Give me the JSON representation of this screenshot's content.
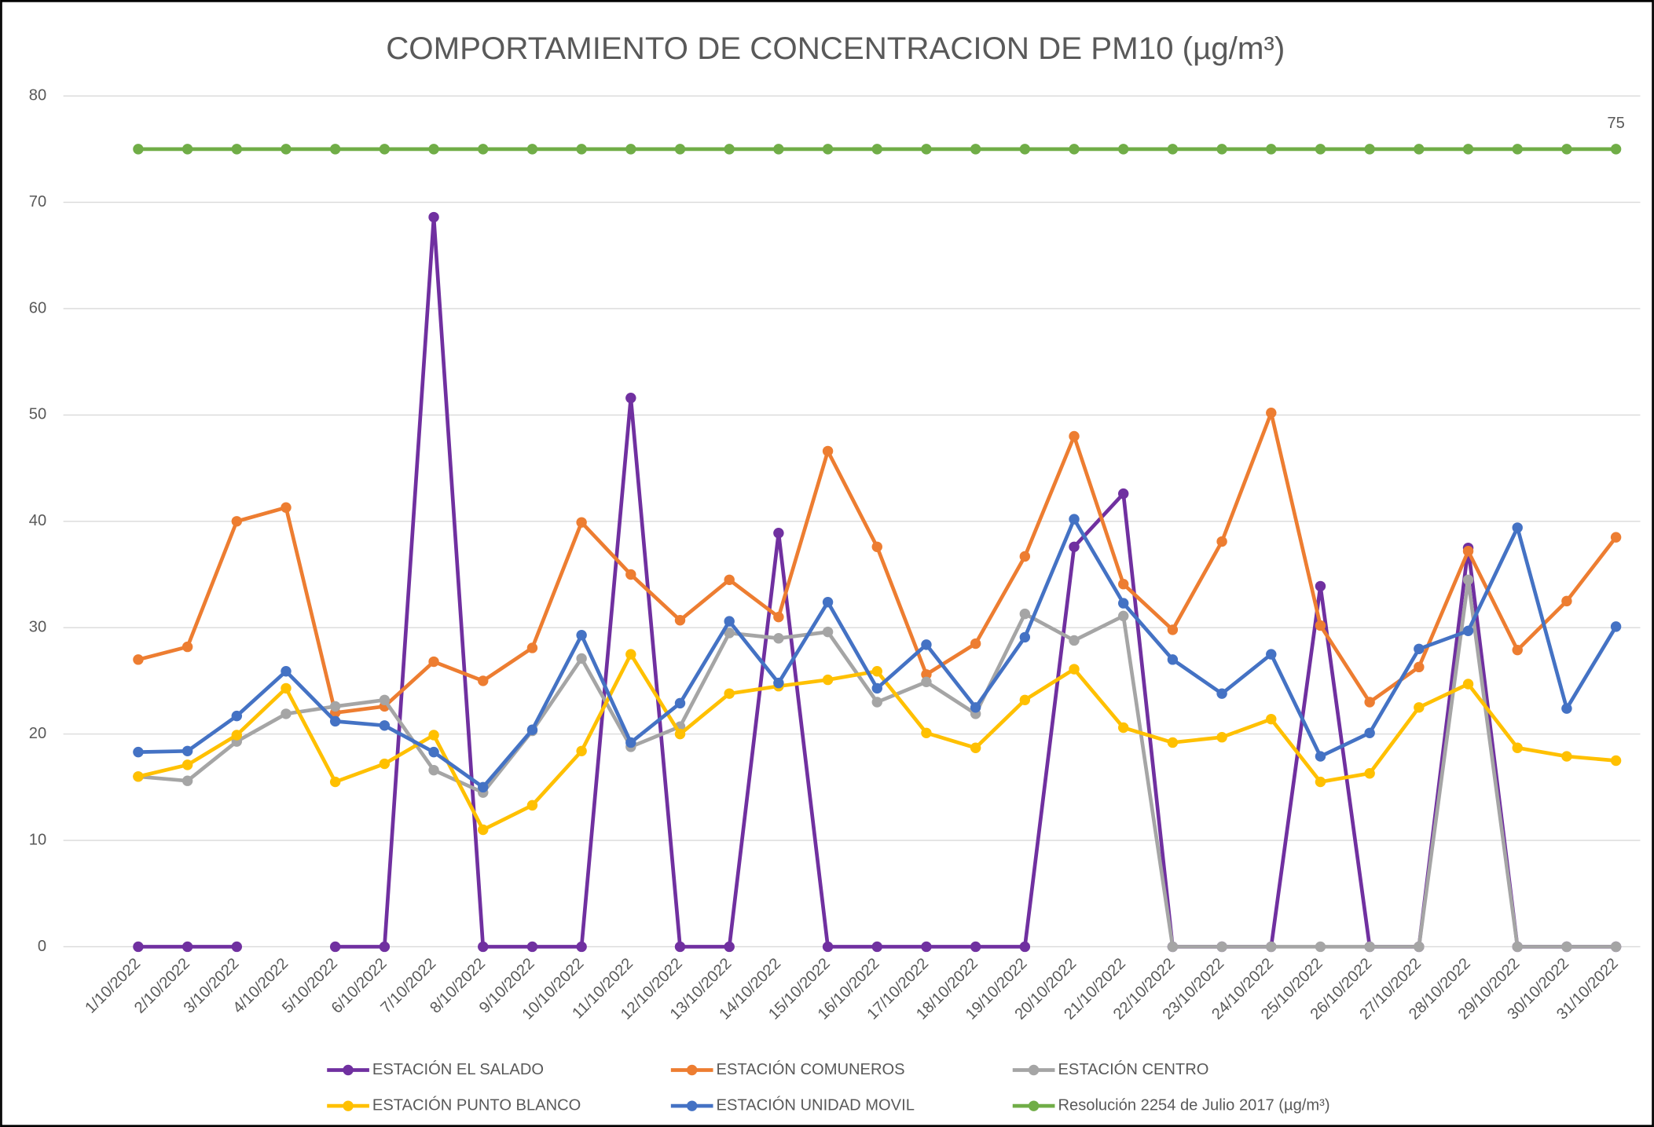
{
  "chart_data": {
    "type": "line",
    "title": "COMPORTAMIENTO DE CONCENTRACION DE PM10 (µg/m³)",
    "categories": [
      "1/10/2022",
      "2/10/2022",
      "3/10/2022",
      "4/10/2022",
      "5/10/2022",
      "6/10/2022",
      "7/10/2022",
      "8/10/2022",
      "9/10/2022",
      "10/10/2022",
      "11/10/2022",
      "12/10/2022",
      "13/10/2022",
      "14/10/2022",
      "15/10/2022",
      "16/10/2022",
      "17/10/2022",
      "18/10/2022",
      "19/10/2022",
      "20/10/2022",
      "21/10/2022",
      "22/10/2022",
      "23/10/2022",
      "24/10/2022",
      "25/10/2022",
      "26/10/2022",
      "27/10/2022",
      "28/10/2022",
      "29/10/2022",
      "30/10/2022",
      "31/10/2022"
    ],
    "series": [
      {
        "name": "ESTACIÓN EL SALADO",
        "color": "#7030a0",
        "values": [
          0,
          0,
          0,
          null,
          0,
          0,
          68.6,
          0,
          0,
          0,
          51.6,
          0,
          0,
          38.9,
          0,
          0,
          0,
          0,
          0,
          37.6,
          42.6,
          0,
          0,
          0,
          33.9,
          0,
          0,
          37.5,
          0,
          0,
          0
        ]
      },
      {
        "name": "ESTACIÓN COMUNEROS",
        "color": "#ed7d31",
        "values": [
          27,
          28.2,
          40,
          41.3,
          22,
          22.6,
          26.8,
          25,
          28.1,
          39.9,
          35,
          30.7,
          34.5,
          31,
          46.6,
          37.6,
          25.6,
          28.5,
          36.7,
          48,
          34.1,
          29.8,
          38.1,
          50.2,
          30.2,
          23,
          26.3,
          37.2,
          27.9,
          32.5,
          38.5
        ]
      },
      {
        "name": "ESTACIÓN CENTRO",
        "color": "#a5a5a5",
        "values": [
          16,
          15.6,
          19.3,
          21.9,
          22.6,
          23.2,
          16.6,
          14.5,
          20.3,
          27.1,
          18.8,
          20.7,
          29.5,
          29,
          29.6,
          23,
          24.9,
          21.9,
          31.3,
          28.8,
          31.1,
          0,
          0,
          0,
          0,
          0,
          0,
          34.5,
          0,
          0,
          0
        ]
      },
      {
        "name": "ESTACIÓN PUNTO BLANCO",
        "color": "#ffc000",
        "values": [
          16,
          17.1,
          19.9,
          24.3,
          15.5,
          17.2,
          19.9,
          11,
          13.3,
          18.4,
          27.5,
          20,
          23.8,
          24.5,
          25.1,
          25.9,
          20.1,
          18.7,
          23.2,
          26.1,
          20.6,
          19.2,
          19.7,
          21.4,
          15.5,
          16.3,
          22.5,
          24.7,
          18.7,
          17.9,
          17.5
        ]
      },
      {
        "name": "ESTACIÓN UNIDAD MOVIL",
        "color": "#4472c4",
        "values": [
          18.3,
          18.4,
          21.7,
          25.9,
          21.2,
          20.8,
          18.3,
          15,
          20.4,
          29.3,
          19.2,
          22.9,
          30.6,
          24.8,
          32.4,
          24.3,
          28.4,
          22.5,
          29.1,
          40.2,
          32.3,
          27,
          23.8,
          27.5,
          17.9,
          20.1,
          28,
          29.7,
          39.4,
          22.4,
          30.1
        ]
      },
      {
        "name": "Resolución 2254 de Julio 2017 (µg/m³)",
        "color": "#70ad47",
        "values": [
          75,
          75,
          75,
          75,
          75,
          75,
          75,
          75,
          75,
          75,
          75,
          75,
          75,
          75,
          75,
          75,
          75,
          75,
          75,
          75,
          75,
          75,
          75,
          75,
          75,
          75,
          75,
          75,
          75,
          75,
          75
        ]
      }
    ],
    "ylim": [
      0,
      80
    ],
    "yticks": [
      0,
      10,
      20,
      30,
      40,
      50,
      60,
      70,
      80
    ],
    "grid": true,
    "legend": "bottom"
  }
}
